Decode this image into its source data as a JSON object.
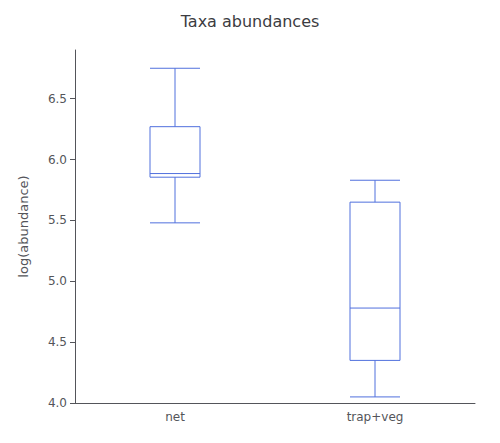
{
  "chart_data": {
    "type": "boxplot",
    "title": "Taxa abundances",
    "ylabel": "log(abundance)",
    "categories": [
      "net",
      "trap+veg"
    ],
    "boxes": [
      {
        "whisker_low": 5.48,
        "q1": 5.855,
        "median": 5.885,
        "q3": 6.27,
        "whisker_high": 6.75
      },
      {
        "whisker_low": 4.05,
        "q1": 4.35,
        "median": 4.78,
        "q3": 5.65,
        "whisker_high": 5.83
      }
    ],
    "ylim": [
      4.0,
      6.9
    ],
    "yticks": [
      {
        "value": 4.0,
        "label": "4.0"
      },
      4.5,
      {
        "value": 5.0,
        "label": "5.0"
      },
      5.5,
      {
        "value": 6.0,
        "label": "6.0"
      },
      6.5
    ],
    "grid": false
  }
}
